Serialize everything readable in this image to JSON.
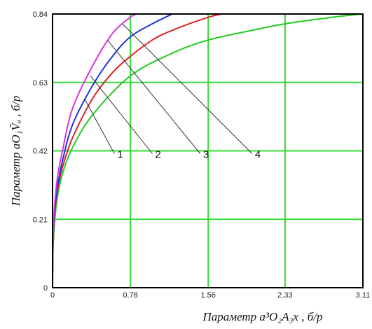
{
  "chart_data": {
    "type": "line",
    "xlabel": "Параметр a³O₂A₃x , б/р",
    "ylabel": "Параметр aO₁Ṽₐ , б/р",
    "x_ticks": [
      "0",
      "0.78",
      "1.56",
      "2.33",
      "3.11"
    ],
    "y_ticks": [
      "0",
      "0.21",
      "0.42",
      "0.63",
      "0.84"
    ],
    "xlim": [
      0,
      3.11
    ],
    "ylim": [
      0,
      0.84
    ],
    "grid": true,
    "colors": {
      "grid": "#33dd33",
      "axes": "#000000"
    },
    "series": [
      {
        "name": "1",
        "color": "#22cc22",
        "points": [
          [
            0,
            0
          ],
          [
            0.005,
            0.12
          ],
          [
            0.02,
            0.2
          ],
          [
            0.05,
            0.28
          ],
          [
            0.1,
            0.35
          ],
          [
            0.2,
            0.43
          ],
          [
            0.4,
            0.53
          ],
          [
            0.78,
            0.65
          ],
          [
            1.2,
            0.72
          ],
          [
            1.56,
            0.76
          ],
          [
            2.0,
            0.79
          ],
          [
            2.33,
            0.81
          ],
          [
            2.8,
            0.83
          ],
          [
            3.11,
            0.84
          ]
        ]
      },
      {
        "name": "2",
        "color": "#dd2222",
        "points": [
          [
            0,
            0
          ],
          [
            0.004,
            0.12
          ],
          [
            0.02,
            0.22
          ],
          [
            0.05,
            0.3
          ],
          [
            0.1,
            0.37
          ],
          [
            0.2,
            0.46
          ],
          [
            0.4,
            0.58
          ],
          [
            0.6,
            0.66
          ],
          [
            0.78,
            0.71
          ],
          [
            1.0,
            0.76
          ],
          [
            1.2,
            0.79
          ],
          [
            1.56,
            0.83
          ],
          [
            1.7,
            0.84
          ]
        ]
      },
      {
        "name": "3",
        "color": "#2233dd",
        "points": [
          [
            0,
            0
          ],
          [
            0.003,
            0.12
          ],
          [
            0.02,
            0.23
          ],
          [
            0.05,
            0.31
          ],
          [
            0.1,
            0.39
          ],
          [
            0.2,
            0.5
          ],
          [
            0.4,
            0.62
          ],
          [
            0.6,
            0.71
          ],
          [
            0.78,
            0.77
          ],
          [
            1.0,
            0.81
          ],
          [
            1.2,
            0.84
          ]
        ]
      },
      {
        "name": "4",
        "color": "#dd33dd",
        "points": [
          [
            0,
            0
          ],
          [
            0.003,
            0.13
          ],
          [
            0.02,
            0.25
          ],
          [
            0.05,
            0.34
          ],
          [
            0.1,
            0.42
          ],
          [
            0.2,
            0.55
          ],
          [
            0.4,
            0.68
          ],
          [
            0.6,
            0.78
          ],
          [
            0.78,
            0.83
          ],
          [
            0.85,
            0.84
          ]
        ]
      }
    ],
    "callouts": [
      {
        "label": "1",
        "point": [
          0.32,
          0.58
        ],
        "text_at": [
          0.62,
          0.42
        ]
      },
      {
        "label": "2",
        "point": [
          0.38,
          0.65
        ],
        "text_at": [
          1.0,
          0.42
        ]
      },
      {
        "label": "3",
        "point": [
          0.55,
          0.76
        ],
        "text_at": [
          1.48,
          0.42
        ]
      },
      {
        "label": "4",
        "point": [
          0.7,
          0.81
        ],
        "text_at": [
          2.0,
          0.42
        ]
      }
    ]
  }
}
